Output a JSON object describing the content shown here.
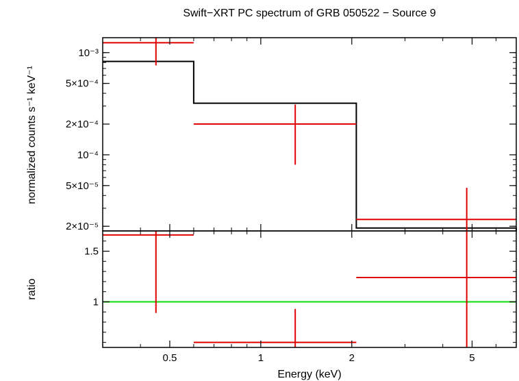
{
  "chart_data": {
    "title": "Swift−XRT PC spectrum of GRB 050522 − Source 9",
    "xlabel": "Energy (keV)",
    "x_scale": "log",
    "xlim": [
      0.3,
      7.0
    ],
    "x_ticks": [
      {
        "value": 0.5,
        "label": "0.5"
      },
      {
        "value": 1,
        "label": "1"
      },
      {
        "value": 2,
        "label": "2"
      },
      {
        "value": 5,
        "label": "5"
      }
    ],
    "panels": [
      {
        "id": "spectrum",
        "type": "step+errorbar",
        "ylabel": "normalized counts s⁻¹ keV⁻¹",
        "y_scale": "log",
        "ylim": [
          1.8e-05,
          0.0014
        ],
        "y_ticks": [
          {
            "value": 0.001,
            "label": "10⁻³"
          },
          {
            "value": 0.0005,
            "label": "5×10⁻⁴"
          },
          {
            "value": 0.0002,
            "label": "2×10⁻⁴"
          },
          {
            "value": 0.0001,
            "label": "10⁻⁴"
          },
          {
            "value": 5e-05,
            "label": "5×10⁻⁵"
          },
          {
            "value": 2e-05,
            "label": "2×10⁻⁵"
          }
        ],
        "data": [
          {
            "x_lo": 0.3,
            "x_hi": 0.6,
            "x": 0.45,
            "y": 0.00125,
            "y_lo": 0.00075,
            "y_hi": 0.0014
          },
          {
            "x_lo": 0.6,
            "x_hi": 2.07,
            "x": 1.3,
            "y": 0.0002,
            "y_lo": 8e-05,
            "y_hi": 0.00031
          },
          {
            "x_lo": 2.07,
            "x_hi": 7.0,
            "x": 4.8,
            "y": 2.33e-05,
            "y_lo": 1.75e-05,
            "y_hi": 4.75e-05
          }
        ],
        "model": [
          {
            "x_lo": 0.3,
            "x_hi": 0.6,
            "y": 0.00082
          },
          {
            "x_lo": 0.6,
            "x_hi": 2.07,
            "y": 0.00032
          },
          {
            "x_lo": 2.07,
            "x_hi": 7.0,
            "y": 1.92e-05
          }
        ],
        "colors": {
          "data": "#e00000",
          "model": "#000000"
        }
      },
      {
        "id": "ratio",
        "type": "errorbar",
        "ylabel": "ratio",
        "y_scale": "linear",
        "ylim": [
          0.55,
          1.7
        ],
        "y_ticks": [
          {
            "value": 1,
            "label": "1"
          },
          {
            "value": 1.5,
            "label": "1.5"
          }
        ],
        "reference_line": 1,
        "data": [
          {
            "x_lo": 0.3,
            "x_hi": 0.6,
            "x": 0.45,
            "y": 1.66,
            "y_lo": 0.89,
            "y_hi": 1.7
          },
          {
            "x_lo": 0.6,
            "x_hi": 2.07,
            "x": 1.3,
            "y": 0.6,
            "y_lo": 0.55,
            "y_hi": 0.93
          },
          {
            "x_lo": 2.07,
            "x_hi": 7.0,
            "x": 4.8,
            "y": 1.24,
            "y_lo": 0.55,
            "y_hi": 1.7
          }
        ],
        "colors": {
          "data": "#e00000",
          "reference": "#00dd00"
        }
      }
    ]
  }
}
